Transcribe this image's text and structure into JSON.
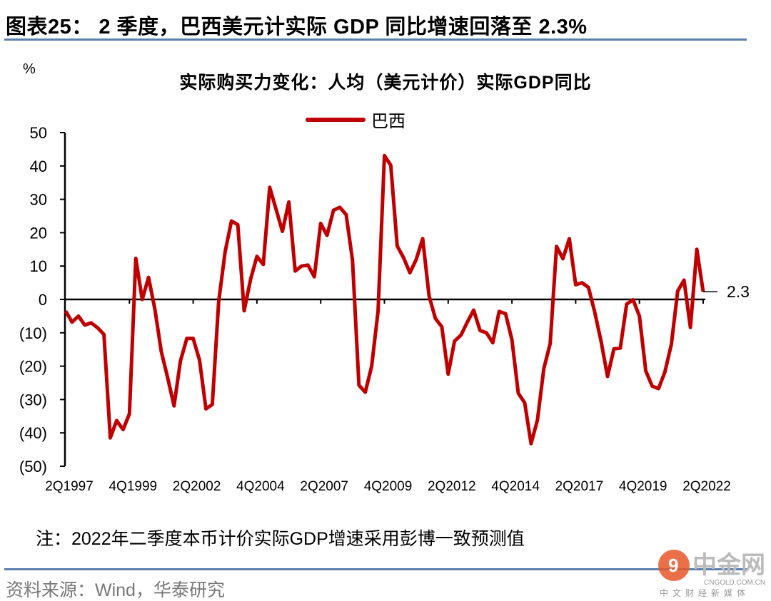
{
  "header": {
    "title": "图表25：  2 季度，巴西美元计实际 GDP 同比增速回落至 2.3%"
  },
  "chart_data": {
    "type": "line",
    "title": "实际购买力变化：人均（美元计价）实际GDP同比",
    "ylabel": "%",
    "xlabel": "",
    "ylim": [
      -50,
      50
    ],
    "yticks": [
      50,
      40,
      30,
      20,
      10,
      0,
      -10,
      -20,
      -30,
      -40,
      -50
    ],
    "ytick_labels": [
      "50",
      "40",
      "30",
      "20",
      "10",
      "0",
      "(10)",
      "(20)",
      "(30)",
      "(40)",
      "(50)"
    ],
    "xtick_labels": [
      "2Q1997",
      "4Q1999",
      "2Q2002",
      "4Q2004",
      "2Q2007",
      "4Q2009",
      "2Q2012",
      "4Q2014",
      "2Q2017",
      "4Q2019",
      "2Q2022"
    ],
    "x_start": "2Q1997",
    "x_end": "2Q2022",
    "frequency": "quarterly",
    "legend": "top-center",
    "series": [
      {
        "name": "巴西",
        "color": "#c00000",
        "values": [
          -3.5,
          -6.8,
          -5,
          -7.7,
          -7,
          -8.5,
          -10.5,
          -41.5,
          -36.3,
          -39,
          -34.3,
          12.3,
          0,
          6.6,
          -3,
          -15.6,
          -23.5,
          -31.9,
          -18.5,
          -11.7,
          -11.7,
          -18.2,
          -32.8,
          -31.5,
          -0.7,
          14.2,
          23.5,
          22.4,
          -3.4,
          6,
          12.9,
          10.5,
          33.6,
          27,
          20.4,
          29.2,
          8.5,
          10,
          10.3,
          6.8,
          22.8,
          19.2,
          26.7,
          27.6,
          25.4,
          11.7,
          -25.7,
          -27.8,
          -20,
          -3.5,
          43.1,
          40.2,
          16,
          12.5,
          8,
          12,
          18.2,
          1.1,
          -5.7,
          -8.2,
          -22.4,
          -12.5,
          -10.7,
          -6.8,
          -3.2,
          -9.3,
          -10,
          -13,
          -3.6,
          -4.3,
          -12.1,
          -28.1,
          -31,
          -43.2,
          -36.2,
          -20.7,
          -13.2,
          15.9,
          12.2,
          18.2,
          4.4,
          5,
          3.6,
          -3.9,
          -12.7,
          -23.1,
          -14.8,
          -14.6,
          -1.4,
          -0.1,
          -5,
          -21.4,
          -26,
          -26.7,
          -21.7,
          -13.5,
          2.5,
          5.8,
          -8.4,
          15,
          2.3
        ]
      }
    ],
    "annotations": [
      {
        "text": "2.3",
        "target": "last point"
      }
    ]
  },
  "footer": {
    "note": "注：2022年二季度本币计价实际GDP增速采用彭博一致预测值",
    "source": "资料来源：Wind，华泰研究",
    "watermark": "中金网 CNGOLD.COM.CN 中文财经新媒体"
  }
}
